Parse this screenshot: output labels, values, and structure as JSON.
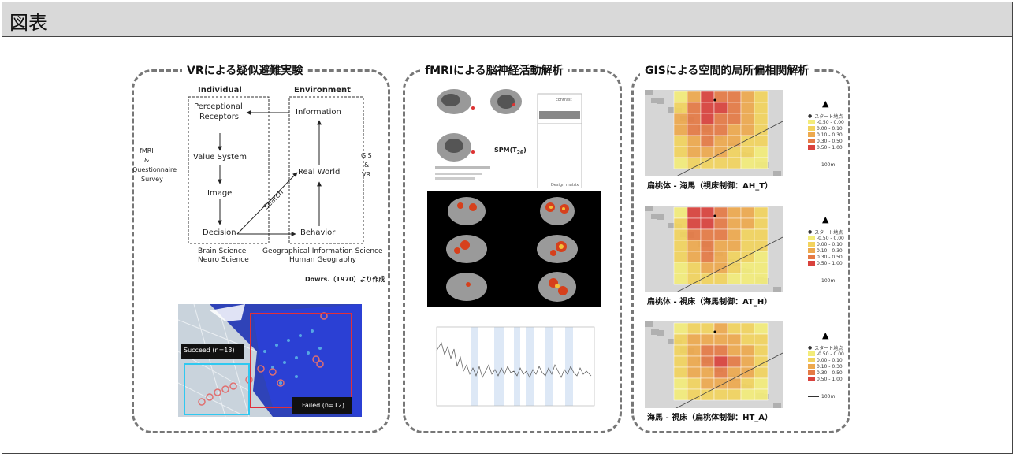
{
  "header": {
    "title": "図表"
  },
  "panels": {
    "vr": {
      "title": "VRによる疑似避難実験"
    },
    "fmri": {
      "title": "fMRIによる脳神経活動解析"
    },
    "gis": {
      "title": "GISによる空間的局所偏相関解析"
    }
  },
  "diagram": {
    "individual": "Individual",
    "environment": "Environment",
    "perceptional": "Perceptional",
    "receptors": "Receptors",
    "value_system": "Value System",
    "image": "Image",
    "decision": "Decision",
    "information": "Information",
    "real_world": "Real World",
    "behavior": "Behavior",
    "search": "Search",
    "left_l1": "fMRI",
    "left_l2": "&",
    "left_l3": "Questionnaire",
    "left_l4": "Survey",
    "right_l1": "GIS",
    "right_l2": "&",
    "right_l3": "VR",
    "bottom_l1": "Brain Science",
    "bottom_l2": "Neuro Science",
    "bottom_r1": "Geographical Information Science",
    "bottom_r2": "Human Geography",
    "source": "Dowrs.（1970）より作成"
  },
  "vr_map": {
    "succeed": "Succeed (n=13)",
    "failed": "Failed (n=12)"
  },
  "spm": {
    "label": "SPM(T",
    "sub": "26",
    "close": ")",
    "contrast": "contrast",
    "design": "Design matrix"
  },
  "gis_legend": {
    "start": "スタート地点",
    "items": [
      {
        "label": "-0.50 - 0.00",
        "color": "#f3ec7a"
      },
      {
        "label": "0.00 - 0.10",
        "color": "#f2d35e"
      },
      {
        "label": "0.10 - 0.30",
        "color": "#eda94e"
      },
      {
        "label": "0.30 - 0.50",
        "color": "#e57a45"
      },
      {
        "label": "0.50 - 1.00",
        "color": "#d9423d"
      }
    ],
    "scale": "100m"
  },
  "gis_captions": [
    "扁桃体 - 海馬（視床制御：AH_T）",
    "扁桃体 - 視床（海馬制御：AT_H）",
    "海馬 - 視床（扁桃体制御：HT_A）"
  ]
}
